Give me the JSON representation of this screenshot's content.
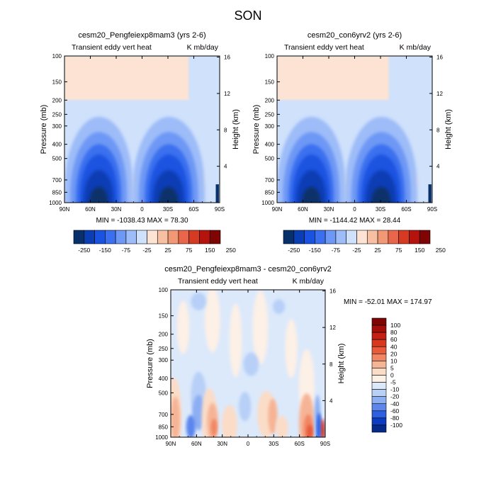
{
  "figure": {
    "title": "SON"
  },
  "panels": [
    {
      "title": "cesm20_Pengfeiexp8mam3 (yrs 2-6)",
      "left_string": "Transient eddy vert heat",
      "right_string": "K mb/day",
      "ylabel": "Pressure (mb)",
      "ylabel_right": "Height (km)",
      "stats": "MIN = -1038.43   MAX =  78.30"
    },
    {
      "title": "cesm20_con6yrv2 (yrs 2-6)",
      "left_string": "Transient eddy vert heat",
      "right_string": "K mb/day",
      "ylabel": "Pressure (mb)",
      "ylabel_right": "Height (km)",
      "stats": "MIN = -1144.42   MAX =  28.44"
    },
    {
      "title": "cesm20_Pengfeiexp8mam3 - cesm20_con6yrv2",
      "left_string": "Transient eddy vert heat",
      "right_string": "K mb/day",
      "ylabel": "Pressure (mb)",
      "ylabel_right": "Height (km)",
      "stats": "MIN = -52.01   MAX = 174.97"
    }
  ],
  "colorbars": {
    "top": {
      "labels": [
        "-250",
        "-150",
        "-75",
        "-25",
        "25",
        "75",
        "150",
        "250"
      ],
      "colors": [
        "#08306b",
        "#0a3eb4",
        "#1a53e0",
        "#3a6fef",
        "#6e98f5",
        "#9dbcf8",
        "#cfe1fb",
        "#fce3d3",
        "#f7c0a3",
        "#f29874",
        "#e8674a",
        "#d63a22",
        "#b5140e",
        "#7f0505"
      ]
    },
    "diff": {
      "labels": [
        "100",
        "80",
        "60",
        "40",
        "20",
        "10",
        "5",
        "0",
        "-5",
        "-10",
        "-20",
        "-40",
        "-60",
        "-80",
        "-100"
      ],
      "colors": [
        "#7f0505",
        "#a30e0a",
        "#c41f12",
        "#d8391e",
        "#e85a3a",
        "#f08663",
        "#f6b496",
        "#fbdcc7",
        "#fdf0e6",
        "#dce9fb",
        "#b8d0f7",
        "#8caef3",
        "#5b86ec",
        "#2d5fe0",
        "#0d3cc3",
        "#062a8a"
      ]
    }
  },
  "chart_data": [
    {
      "type": "heatmap",
      "title": "cesm20_Pengfeiexp8mam3 (yrs 2-6)",
      "xlabel": "",
      "ylabel": "Pressure (mb)",
      "y2label": "Height (km)",
      "x_ticks": [
        "90N",
        "60N",
        "30N",
        "0",
        "30S",
        "60S",
        "90S"
      ],
      "y_ticks": [
        "100",
        "150",
        "200",
        "250",
        "300",
        "400",
        "500",
        "700",
        "850",
        "1000"
      ],
      "y2_ticks": [
        "16",
        "12",
        "8",
        "4"
      ],
      "units": "K mb/day",
      "min": -1038.43,
      "max": 78.3,
      "contour_levels": [
        -250,
        -150,
        -75,
        -25,
        25,
        75,
        150,
        250
      ]
    },
    {
      "type": "heatmap",
      "title": "cesm20_con6yrv2 (yrs 2-6)",
      "xlabel": "",
      "ylabel": "Pressure (mb)",
      "y2label": "Height (km)",
      "x_ticks": [
        "90N",
        "60N",
        "30N",
        "0",
        "30S",
        "60S",
        "90S"
      ],
      "y_ticks": [
        "100",
        "150",
        "200",
        "250",
        "300",
        "400",
        "500",
        "700",
        "850",
        "1000"
      ],
      "y2_ticks": [
        "16",
        "12",
        "8",
        "4"
      ],
      "units": "K mb/day",
      "min": -1144.42,
      "max": 28.44,
      "contour_levels": [
        -250,
        -150,
        -75,
        -25,
        25,
        75,
        150,
        250
      ]
    },
    {
      "type": "heatmap",
      "title": "cesm20_Pengfeiexp8mam3 - cesm20_con6yrv2",
      "xlabel": "",
      "ylabel": "Pressure (mb)",
      "y2label": "Height (km)",
      "x_ticks": [
        "90N",
        "60N",
        "30N",
        "0",
        "30S",
        "60S",
        "90S"
      ],
      "y_ticks": [
        "100",
        "150",
        "200",
        "250",
        "300",
        "400",
        "500",
        "700",
        "850",
        "1000"
      ],
      "y2_ticks": [
        "16",
        "12",
        "8",
        "4"
      ],
      "units": "K mb/day",
      "min": -52.01,
      "max": 174.97,
      "contour_levels": [
        -100,
        -80,
        -60,
        -40,
        -20,
        -10,
        -5,
        0,
        5,
        10,
        20,
        40,
        60,
        80,
        100
      ]
    }
  ]
}
